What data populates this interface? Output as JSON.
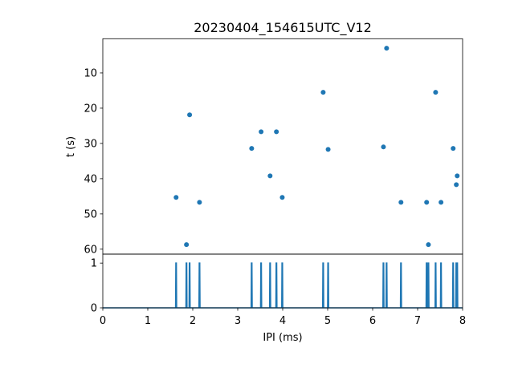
{
  "chart_data": [
    {
      "type": "scatter",
      "title": "20230404_154615UTC_V12",
      "xlabel": "",
      "ylabel": "t (s)",
      "xlim": [
        0,
        8
      ],
      "ylim": [
        61.4,
        0.3
      ],
      "y_inverted": true,
      "yticks": [
        10,
        20,
        30,
        40,
        50,
        60
      ],
      "grid": false,
      "color": "#1f77b4",
      "points": [
        [
          1.63,
          45.3
        ],
        [
          1.86,
          58.7
        ],
        [
          1.93,
          21.9
        ],
        [
          2.15,
          46.7
        ],
        [
          3.31,
          31.4
        ],
        [
          3.52,
          26.7
        ],
        [
          3.72,
          39.2
        ],
        [
          3.86,
          26.7
        ],
        [
          3.99,
          45.3
        ],
        [
          4.9,
          15.5
        ],
        [
          5.01,
          31.7
        ],
        [
          6.24,
          31.0
        ],
        [
          6.31,
          3.0
        ],
        [
          6.63,
          46.7
        ],
        [
          7.2,
          46.7
        ],
        [
          7.24,
          58.7
        ],
        [
          7.4,
          15.5
        ],
        [
          7.52,
          46.7
        ],
        [
          7.79,
          31.4
        ],
        [
          7.86,
          41.7
        ],
        [
          7.88,
          39.2
        ]
      ]
    },
    {
      "type": "line",
      "xlabel": "IPI (ms)",
      "ylabel": "",
      "xlim": [
        0,
        8
      ],
      "ylim": [
        0,
        1.2
      ],
      "xticks": [
        0,
        1,
        2,
        3,
        4,
        5,
        6,
        7,
        8
      ],
      "yticks": [
        0,
        1
      ],
      "color": "#1f77b4",
      "spikes_x": [
        1.63,
        1.86,
        1.93,
        2.15,
        3.31,
        3.52,
        3.72,
        3.86,
        3.99,
        4.9,
        5.01,
        6.24,
        6.31,
        6.63,
        7.2,
        7.24,
        7.4,
        7.52,
        7.79,
        7.86,
        7.88
      ],
      "spike_height": 1
    }
  ]
}
